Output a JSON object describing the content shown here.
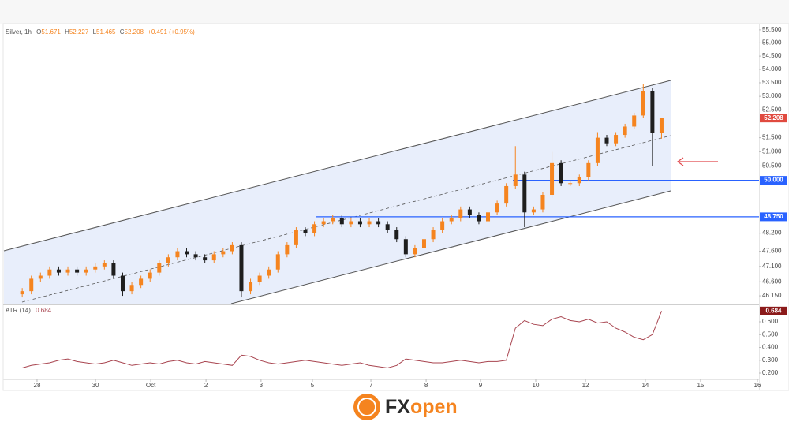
{
  "chart_data": {
    "type": "candlestick",
    "header": {
      "symbol": "Silver, 1h",
      "fields": [
        {
          "label": "O",
          "value": "51.671"
        },
        {
          "label": "H",
          "value": "52.227"
        },
        {
          "label": "L",
          "value": "51.465"
        },
        {
          "label": "C",
          "value": "52.208"
        }
      ],
      "change": "+0.491 (+0.95%)"
    },
    "log_scale": true,
    "up_color": "#f5841f",
    "down_color": "#1e1e1e",
    "xlim": [
      0,
      330
    ],
    "xticks": [
      {
        "value": 14.5,
        "label": "28"
      },
      {
        "value": 40.1,
        "label": "30"
      },
      {
        "value": 64.3,
        "label": "Oct"
      },
      {
        "value": 88.5,
        "label": "2"
      },
      {
        "value": 112.6,
        "label": "3"
      },
      {
        "value": 135.1,
        "label": "5"
      },
      {
        "value": 160.7,
        "label": "7"
      },
      {
        "value": 184.9,
        "label": "8"
      },
      {
        "value": 208.7,
        "label": "9"
      },
      {
        "value": 232.9,
        "label": "10"
      },
      {
        "value": 254.7,
        "label": "12"
      },
      {
        "value": 280.9,
        "label": "14"
      },
      {
        "value": 305.1,
        "label": "15"
      },
      {
        "value": 330,
        "label": "16"
      }
    ],
    "ylim": [
      45.9,
      55.74
    ],
    "yticks": [
      {
        "value": 55.5,
        "label": "55.500"
      },
      {
        "value": 55,
        "label": "55.000"
      },
      {
        "value": 54.5,
        "label": "54.500"
      },
      {
        "value": 54,
        "label": "54.000"
      },
      {
        "value": 53.5,
        "label": "53.500"
      },
      {
        "value": 53,
        "label": "53.000"
      },
      {
        "value": 52.5,
        "label": "52.500"
      },
      {
        "value": 51.5,
        "label": "51.500"
      },
      {
        "value": 51,
        "label": "51.000"
      },
      {
        "value": 50.5,
        "label": "50.500"
      },
      {
        "value": 48.2,
        "label": "48.200"
      },
      {
        "value": 47.6,
        "label": "47.600"
      },
      {
        "value": 47.1,
        "label": "47.100"
      },
      {
        "value": 46.6,
        "label": "46.600"
      },
      {
        "value": 46.15,
        "label": "46.150"
      }
    ],
    "x": [
      8,
      12,
      16,
      20,
      24,
      28,
      32,
      36,
      40,
      44,
      48,
      52,
      56,
      60,
      64,
      68,
      72,
      76,
      80,
      84,
      88,
      92,
      96,
      100,
      104,
      108,
      112,
      116,
      120,
      124,
      128,
      132,
      136,
      140,
      144,
      148,
      152,
      156,
      160,
      164,
      168,
      172,
      176,
      180,
      184,
      188,
      192,
      196,
      200,
      204,
      208,
      212,
      216,
      220,
      224,
      228,
      232,
      236,
      240,
      244,
      248,
      252,
      256,
      260,
      264,
      268,
      272,
      276,
      280,
      284,
      288
    ],
    "open": [
      46.2,
      46.3,
      46.7,
      46.8,
      47.0,
      46.9,
      47.0,
      46.9,
      47.0,
      47.1,
      47.2,
      46.8,
      46.3,
      46.5,
      46.7,
      46.9,
      47.2,
      47.4,
      47.6,
      47.5,
      47.4,
      47.3,
      47.5,
      47.6,
      47.8,
      46.3,
      46.6,
      46.8,
      47.0,
      47.5,
      47.8,
      48.3,
      48.2,
      48.5,
      48.6,
      48.7,
      48.5,
      48.6,
      48.5,
      48.6,
      48.5,
      48.3,
      48.0,
      47.5,
      47.7,
      48.0,
      48.3,
      48.6,
      48.7,
      49.0,
      48.8,
      48.6,
      48.9,
      49.2,
      49.8,
      50.2,
      48.9,
      49.0,
      49.5,
      50.6,
      49.9,
      49.9,
      50.1,
      50.6,
      51.5,
      51.3,
      51.6,
      51.9,
      52.3,
      53.2,
      51.671
    ],
    "high": [
      46.4,
      46.8,
      46.9,
      47.1,
      47.1,
      47.1,
      47.1,
      47.1,
      47.2,
      47.3,
      47.3,
      46.9,
      46.6,
      46.8,
      47.0,
      47.3,
      47.5,
      47.7,
      47.7,
      47.6,
      47.5,
      47.6,
      47.7,
      47.9,
      47.9,
      46.7,
      46.9,
      47.1,
      47.6,
      47.9,
      48.4,
      48.4,
      48.6,
      48.7,
      48.8,
      48.8,
      48.7,
      48.7,
      48.7,
      48.7,
      48.6,
      48.4,
      48.1,
      47.8,
      48.1,
      48.4,
      48.7,
      48.8,
      49.1,
      49.1,
      48.9,
      49.0,
      49.3,
      49.9,
      51.2,
      50.3,
      49.1,
      49.6,
      51.0,
      50.7,
      50.0,
      50.2,
      50.7,
      51.7,
      51.6,
      51.7,
      52.0,
      52.4,
      53.45,
      53.3,
      52.227
    ],
    "low": [
      46.1,
      46.2,
      46.6,
      46.7,
      46.8,
      46.8,
      46.8,
      46.8,
      46.9,
      47.0,
      46.7,
      46.15,
      46.2,
      46.4,
      46.6,
      46.8,
      47.1,
      47.3,
      47.4,
      47.3,
      47.2,
      47.2,
      47.4,
      47.5,
      46.1,
      46.2,
      46.5,
      46.7,
      46.9,
      47.4,
      47.7,
      48.1,
      48.1,
      48.4,
      48.5,
      48.4,
      48.4,
      48.4,
      48.4,
      48.4,
      48.2,
      47.9,
      47.4,
      47.4,
      47.6,
      47.9,
      48.2,
      48.5,
      48.6,
      48.7,
      48.5,
      48.5,
      48.8,
      49.1,
      49.7,
      48.4,
      48.8,
      48.9,
      49.4,
      49.8,
      49.8,
      49.8,
      50.0,
      50.5,
      51.2,
      51.2,
      51.5,
      51.8,
      52.2,
      50.5,
      51.465
    ],
    "close": [
      46.3,
      46.7,
      46.8,
      47.0,
      46.9,
      47.0,
      46.9,
      47.0,
      47.1,
      47.2,
      46.8,
      46.3,
      46.5,
      46.7,
      46.9,
      47.2,
      47.4,
      47.6,
      47.5,
      47.4,
      47.3,
      47.5,
      47.6,
      47.8,
      46.3,
      46.6,
      46.8,
      47.0,
      47.5,
      47.8,
      48.3,
      48.2,
      48.5,
      48.6,
      48.7,
      48.5,
      48.6,
      48.5,
      48.6,
      48.5,
      48.3,
      48.0,
      47.5,
      47.7,
      48.0,
      48.3,
      48.6,
      48.7,
      49.0,
      48.8,
      48.6,
      48.9,
      49.2,
      49.8,
      50.2,
      48.9,
      49.0,
      49.5,
      50.6,
      49.9,
      49.9,
      50.1,
      50.6,
      51.5,
      51.3,
      51.6,
      51.9,
      52.3,
      53.2,
      51.671,
      52.208
    ],
    "last_price": {
      "value": 52.208,
      "label": "52.208",
      "color": "#e04a3f"
    },
    "levels": [
      {
        "value": 50,
        "label": "50.000",
        "color": "#2962ff"
      },
      {
        "value": 48.75,
        "label": "48.750",
        "color": "#2962ff"
      }
    ],
    "indicator": {
      "name": "ATR (14)",
      "value_label": "0.684",
      "color": "#a8444f",
      "label_color": "#8b1a1a",
      "ylim": [
        0.157,
        0.723
      ],
      "yticks": [
        {
          "value": 0.6,
          "label": "0.600"
        },
        {
          "value": 0.5,
          "label": "0.500"
        },
        {
          "value": 0.4,
          "label": "0.400"
        },
        {
          "value": 0.3,
          "label": "0.300"
        },
        {
          "value": 0.2,
          "label": "0.200"
        }
      ],
      "values": [
        0.24,
        0.26,
        0.27,
        0.28,
        0.3,
        0.31,
        0.29,
        0.28,
        0.27,
        0.28,
        0.3,
        0.28,
        0.26,
        0.27,
        0.28,
        0.27,
        0.29,
        0.3,
        0.28,
        0.27,
        0.29,
        0.28,
        0.27,
        0.26,
        0.34,
        0.33,
        0.3,
        0.28,
        0.27,
        0.28,
        0.29,
        0.3,
        0.29,
        0.28,
        0.27,
        0.26,
        0.27,
        0.28,
        0.26,
        0.25,
        0.24,
        0.26,
        0.31,
        0.3,
        0.29,
        0.28,
        0.28,
        0.29,
        0.3,
        0.29,
        0.28,
        0.29,
        0.29,
        0.3,
        0.55,
        0.61,
        0.58,
        0.57,
        0.62,
        0.64,
        0.61,
        0.6,
        0.62,
        0.59,
        0.6,
        0.55,
        0.52,
        0.48,
        0.46,
        0.5,
        0.684
      ]
    }
  },
  "brand": {
    "fx": "FX",
    "open": "open"
  }
}
